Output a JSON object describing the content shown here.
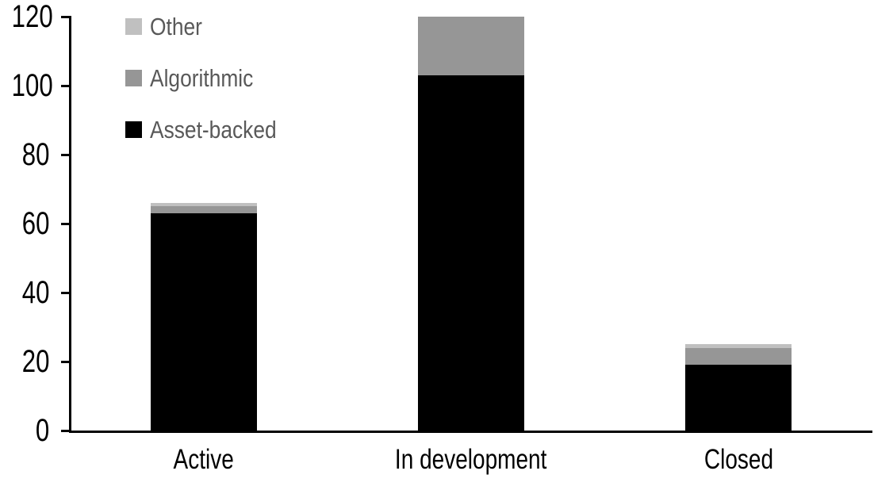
{
  "chart_data": {
    "type": "bar",
    "stacked": true,
    "title": "",
    "xlabel": "",
    "ylabel": "",
    "categories": [
      "Active",
      "In development",
      "Closed"
    ],
    "series": [
      {
        "name": "Asset-backed",
        "color": "#000000",
        "values": [
          63,
          103,
          19
        ]
      },
      {
        "name": "Algorithmic",
        "color": "#969696",
        "values": [
          2,
          17,
          5
        ]
      },
      {
        "name": "Other",
        "color": "#c0c0c0",
        "values": [
          1,
          0,
          1
        ]
      }
    ],
    "totals": [
      66,
      120,
      25
    ],
    "legend_order_top_to_bottom": [
      "Other",
      "Algorithmic",
      "Asset-backed"
    ],
    "legend_position": "top-left",
    "legend_text_color": "#595959",
    "axis_color": "#000000",
    "background_color": "#ffffff",
    "ylim": [
      0,
      120
    ],
    "ytick_step": 20,
    "yticks": [
      "0",
      "20",
      "40",
      "60",
      "80",
      "100",
      "120"
    ],
    "grid": false
  }
}
